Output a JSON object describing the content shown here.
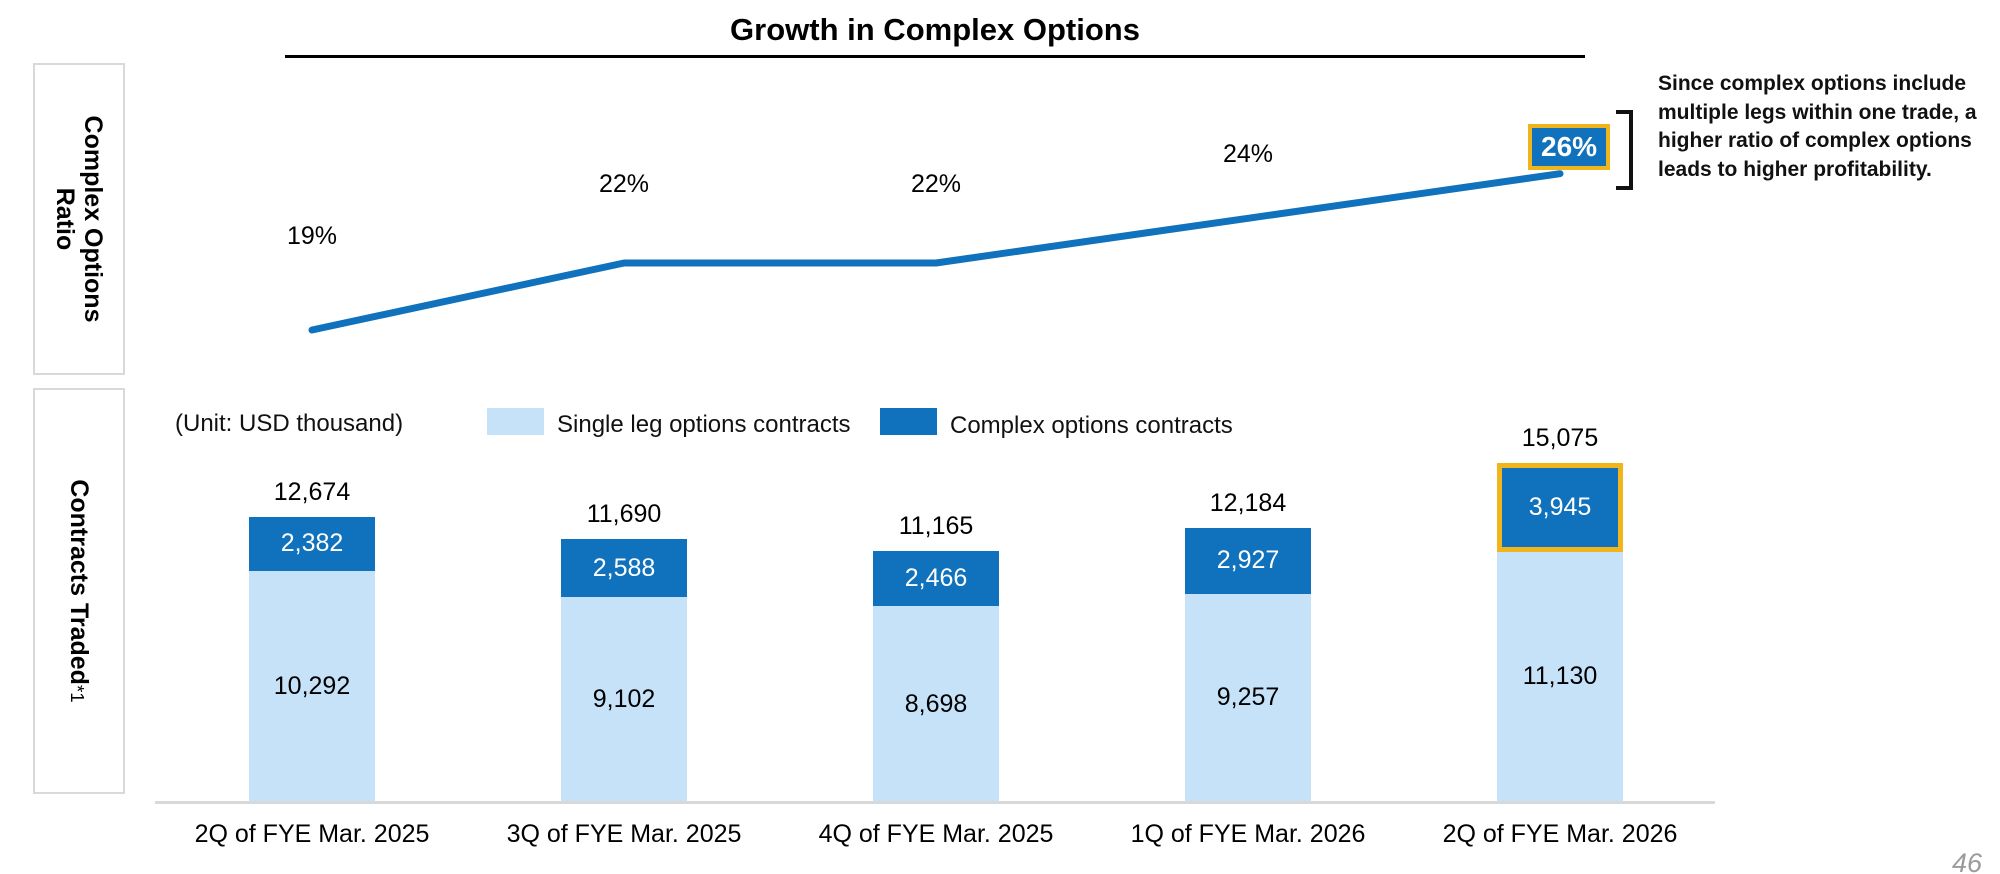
{
  "page": {
    "title": "Growth in Complex Options",
    "page_number": "46"
  },
  "panels": {
    "ratio_label": "Complex Options Ratio",
    "contracts_label": "Contracts Traded",
    "contracts_footnote": "*1"
  },
  "annotation": {
    "text": "Since complex options include multiple legs within one trade, a higher ratio of complex options leads to higher profitability."
  },
  "legend": {
    "unit": "(Unit: USD thousand)",
    "single_label": "Single leg options contracts",
    "complex_label": "Complex options contracts"
  },
  "colors": {
    "complex_blue": "#1072bc",
    "single_light_blue": "#c6e2f9",
    "highlight_gold": "#f0b41c",
    "panel_border_gray": "#d9d9d9",
    "axis_gray": "#d9d9d9"
  },
  "chart_data": [
    {
      "type": "line",
      "title": "Complex Options Ratio",
      "x": [
        "2Q of FYE Mar. 2025",
        "3Q of FYE Mar. 2025",
        "4Q of FYE Mar. 2025",
        "1Q of FYE Mar. 2026",
        "2Q of FYE Mar. 2026"
      ],
      "values": [
        19,
        22,
        22,
        24,
        26
      ],
      "labels": [
        "19%",
        "22%",
        "22%",
        "24%",
        "26%"
      ],
      "unit": "%",
      "highlight_last_point": true,
      "legend_position": "none",
      "grid": false
    },
    {
      "type": "bar",
      "stacked": true,
      "title": "Contracts Traded",
      "unit": "(Unit: USD thousand)",
      "categories": [
        "2Q of FYE Mar. 2025",
        "3Q of FYE Mar. 2025",
        "4Q of FYE Mar. 2025",
        "1Q of FYE Mar. 2026",
        "2Q of FYE Mar. 2026"
      ],
      "series": [
        {
          "name": "Single leg options contracts",
          "values": [
            10292,
            9102,
            8698,
            9257,
            11130
          ]
        },
        {
          "name": "Complex options contracts",
          "values": [
            2382,
            2588,
            2466,
            2927,
            3945
          ]
        }
      ],
      "totals": [
        12674,
        11690,
        11165,
        12184,
        15075
      ],
      "highlight": {
        "series": "Complex options contracts",
        "index": 4
      },
      "legend_position": "top",
      "grid": false
    }
  ]
}
